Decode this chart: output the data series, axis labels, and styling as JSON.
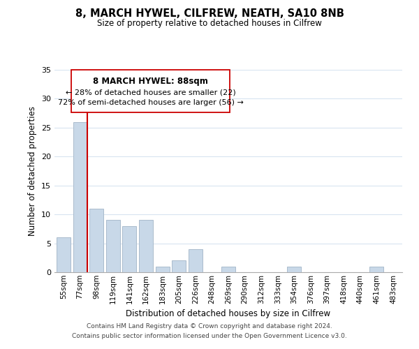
{
  "title": "8, MARCH HYWEL, CILFREW, NEATH, SA10 8NB",
  "subtitle": "Size of property relative to detached houses in Cilfrew",
  "xlabel": "Distribution of detached houses by size in Cilfrew",
  "ylabel": "Number of detached properties",
  "bar_labels": [
    "55sqm",
    "77sqm",
    "98sqm",
    "119sqm",
    "141sqm",
    "162sqm",
    "183sqm",
    "205sqm",
    "226sqm",
    "248sqm",
    "269sqm",
    "290sqm",
    "312sqm",
    "333sqm",
    "354sqm",
    "376sqm",
    "397sqm",
    "418sqm",
    "440sqm",
    "461sqm",
    "483sqm"
  ],
  "bar_values": [
    6,
    26,
    11,
    9,
    8,
    9,
    1,
    2,
    4,
    0,
    1,
    0,
    0,
    0,
    1,
    0,
    0,
    0,
    0,
    1,
    0
  ],
  "bar_color": "#c8d8e8",
  "bar_edge_color": "#aabbcc",
  "highlight_line_color": "#cc0000",
  "annotation_title": "8 MARCH HYWEL: 88sqm",
  "annotation_line1": "← 28% of detached houses are smaller (22)",
  "annotation_line2": "72% of semi-detached houses are larger (56) →",
  "ylim": [
    0,
    35
  ],
  "yticks": [
    0,
    5,
    10,
    15,
    20,
    25,
    30,
    35
  ],
  "footer1": "Contains HM Land Registry data © Crown copyright and database right 2024.",
  "footer2": "Contains public sector information licensed under the Open Government Licence v3.0.",
  "background_color": "#ffffff",
  "grid_color": "#d8e4f0"
}
